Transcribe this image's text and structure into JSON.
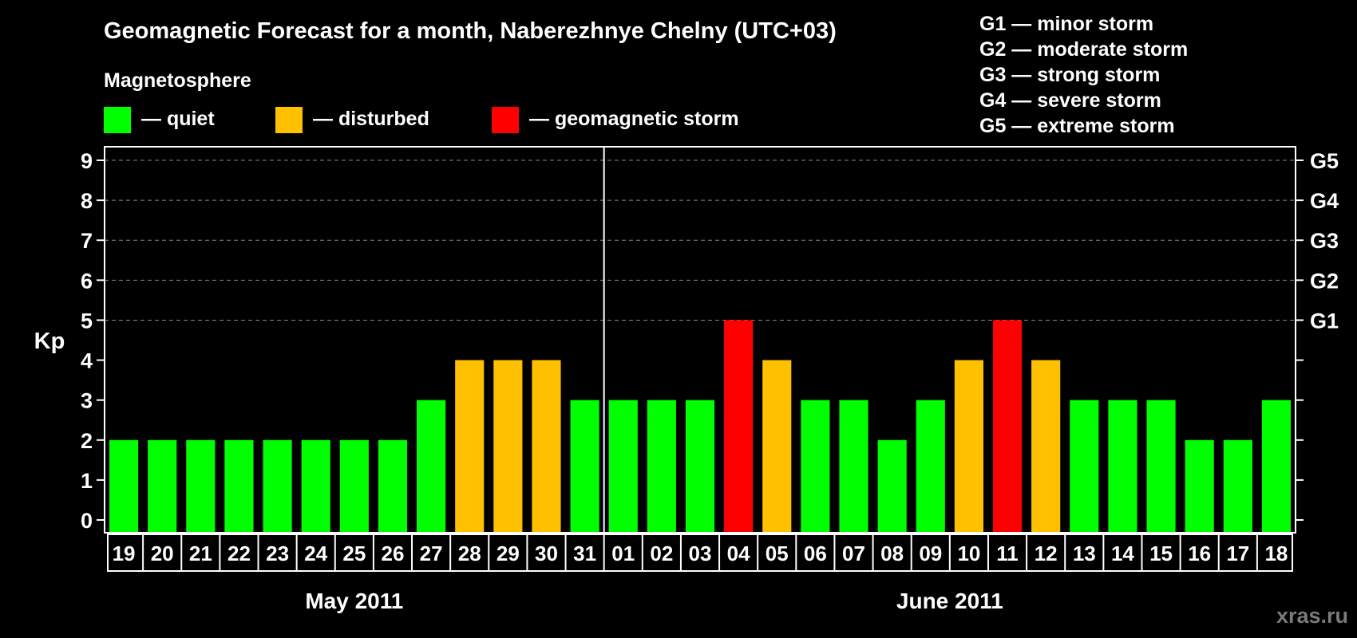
{
  "chart_data": {
    "type": "bar",
    "title": "Geomagnetic Forecast for a month, Naberezhnye Chelny (UTC+03)",
    "ylabel": "Kp",
    "ylim": [
      0,
      9
    ],
    "yticks": [
      "0",
      "1",
      "2",
      "3",
      "4",
      "5",
      "6",
      "7",
      "8",
      "9"
    ],
    "right_ticks": [
      {
        "value": 5,
        "label": "G1"
      },
      {
        "value": 6,
        "label": "G2"
      },
      {
        "value": 7,
        "label": "G3"
      },
      {
        "value": 8,
        "label": "G4"
      },
      {
        "value": 9,
        "label": "G5"
      }
    ],
    "grid": "horizontal dashed",
    "categories": [
      "19",
      "20",
      "21",
      "22",
      "23",
      "24",
      "25",
      "26",
      "27",
      "28",
      "29",
      "30",
      "31",
      "01",
      "02",
      "03",
      "04",
      "05",
      "06",
      "07",
      "08",
      "09",
      "10",
      "11",
      "12",
      "13",
      "14",
      "15",
      "16",
      "17",
      "18"
    ],
    "values": [
      2,
      2,
      2,
      2,
      2,
      2,
      2,
      2,
      3,
      4,
      4,
      4,
      3,
      3,
      3,
      3,
      5,
      4,
      3,
      3,
      2,
      3,
      4,
      5,
      4,
      3,
      3,
      3,
      2,
      2,
      3
    ],
    "months": [
      {
        "label": "May 2011",
        "start": 0,
        "count": 13
      },
      {
        "label": "June 2011",
        "start": 13,
        "count": 18
      }
    ],
    "legend": {
      "title": "Magnetosphere",
      "items": [
        {
          "label": "— quiet",
          "color": "#00ff00",
          "key": "quiet"
        },
        {
          "label": "— disturbed",
          "color": "#ffc000",
          "key": "disturbed"
        },
        {
          "label": "— geomagnetic storm",
          "color": "#ff0000",
          "key": "storm"
        }
      ]
    },
    "storm_scale": [
      "G1 — minor storm",
      "G2 — moderate storm",
      "G3 — strong storm",
      "G4 — severe storm",
      "G5 — extreme storm"
    ],
    "colors": {
      "quiet": "#00ff00",
      "disturbed": "#ffc000",
      "storm": "#ff0000",
      "background": "#000000",
      "grid": "#888888"
    }
  },
  "watermark": "xras.ru"
}
